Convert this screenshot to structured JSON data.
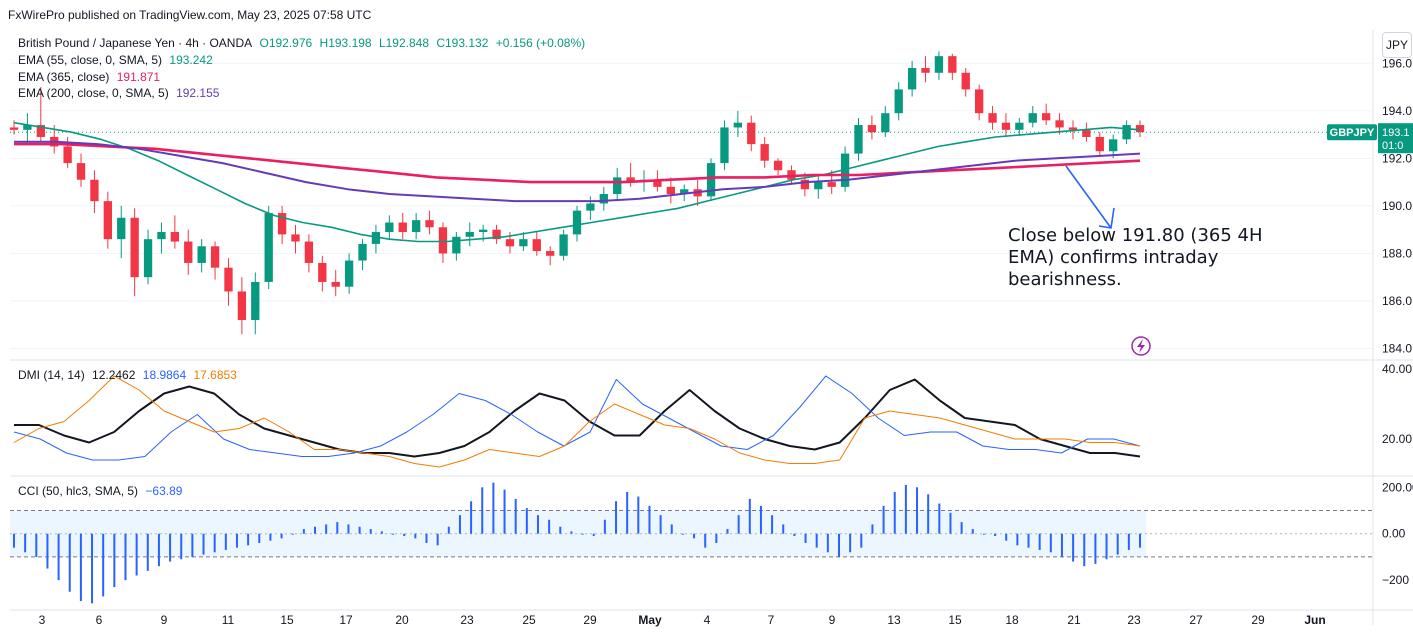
{
  "publisher_line": "FxWirePro published on TradingView.com, May 23, 2025 07:58 UTC",
  "currency_button": "JPY",
  "symbol_header": {
    "name": "British Pound / Japanese Yen · 4h · OANDA",
    "O": "O192.976",
    "H": "H193.198",
    "L": "L192.848",
    "C": "C193.132",
    "change": "+0.156 (+0.08%)"
  },
  "indicators": [
    {
      "label": "EMA (55, close, 0, SMA, 5)",
      "value": "193.242",
      "color": "#089981"
    },
    {
      "label": "EMA (365, close)",
      "value": "191.871",
      "color": "#e91e63"
    },
    {
      "label": "EMA (200, close, 0, SMA, 5)",
      "value": "192.155",
      "color": "#673ab7"
    }
  ],
  "dmi": {
    "label": "DMI (14, 14)",
    "adx": "12.2462",
    "plus": "18.9864",
    "minus": "17.6853"
  },
  "cci": {
    "label": "CCI (50, hlc3, SMA, 5)",
    "value": "−63.89"
  },
  "price_tag": {
    "symbol": "GBPJPY",
    "price": "193.1",
    "countdown": "01:0"
  },
  "annotation": "Close below 191.80 (365 4H EMA) confirms intraday bearishness.",
  "colors": {
    "up": "#089981",
    "down": "#f23645",
    "ema55": "#089981",
    "ema365": "#e91e63",
    "ema200": "#673ab7",
    "adx": "#131722",
    "di_plus": "#2962ff",
    "di_minus": "#f57c00",
    "cci": "#2962ff"
  },
  "chart_data": [
    {
      "type": "candlestick",
      "title": "British Pound / Japanese Yen · 4h · OANDA",
      "x_ticks": [
        "3",
        "6",
        "9",
        "11",
        "15",
        "17",
        "20",
        "23",
        "25",
        "29",
        "May",
        "4",
        "7",
        "9",
        "13",
        "15",
        "18",
        "21",
        "23",
        "27",
        "29",
        "Jun"
      ],
      "y_ticks": [
        "196.0",
        "194.0",
        "192.0",
        "190.0",
        "188.0",
        "186.0",
        "184.0"
      ],
      "ylim": [
        183.6,
        197.4
      ],
      "candles": [
        {
          "o": 193.3,
          "h": 193.6,
          "l": 193.0,
          "c": 193.2
        },
        {
          "o": 193.2,
          "h": 193.9,
          "l": 192.6,
          "c": 193.4
        },
        {
          "o": 193.4,
          "h": 195.0,
          "l": 192.7,
          "c": 192.9
        },
        {
          "o": 192.9,
          "h": 193.4,
          "l": 192.2,
          "c": 192.5
        },
        {
          "o": 192.5,
          "h": 192.9,
          "l": 191.6,
          "c": 191.8
        },
        {
          "o": 191.8,
          "h": 192.2,
          "l": 190.8,
          "c": 191.1
        },
        {
          "o": 191.1,
          "h": 191.5,
          "l": 189.7,
          "c": 190.2
        },
        {
          "o": 190.2,
          "h": 190.6,
          "l": 188.2,
          "c": 188.6
        },
        {
          "o": 188.6,
          "h": 190.0,
          "l": 187.8,
          "c": 189.5
        },
        {
          "o": 189.5,
          "h": 189.9,
          "l": 186.2,
          "c": 187.0
        },
        {
          "o": 187.0,
          "h": 189.0,
          "l": 186.7,
          "c": 188.6
        },
        {
          "o": 188.6,
          "h": 189.3,
          "l": 188.0,
          "c": 188.9
        },
        {
          "o": 188.9,
          "h": 189.6,
          "l": 188.2,
          "c": 188.5
        },
        {
          "o": 188.5,
          "h": 189.0,
          "l": 187.1,
          "c": 187.6
        },
        {
          "o": 187.6,
          "h": 188.6,
          "l": 187.2,
          "c": 188.3
        },
        {
          "o": 188.3,
          "h": 188.5,
          "l": 186.9,
          "c": 187.4
        },
        {
          "o": 187.4,
          "h": 187.8,
          "l": 185.8,
          "c": 186.4
        },
        {
          "o": 186.4,
          "h": 187.0,
          "l": 184.6,
          "c": 185.2
        },
        {
          "o": 185.2,
          "h": 187.2,
          "l": 184.6,
          "c": 186.8
        },
        {
          "o": 186.8,
          "h": 190.0,
          "l": 186.5,
          "c": 189.7
        },
        {
          "o": 189.7,
          "h": 190.0,
          "l": 188.4,
          "c": 188.8
        },
        {
          "o": 188.8,
          "h": 189.2,
          "l": 188.0,
          "c": 188.5
        },
        {
          "o": 188.5,
          "h": 188.8,
          "l": 187.2,
          "c": 187.6
        },
        {
          "o": 187.6,
          "h": 187.9,
          "l": 186.4,
          "c": 186.8
        },
        {
          "o": 186.8,
          "h": 187.3,
          "l": 186.2,
          "c": 186.6
        },
        {
          "o": 186.6,
          "h": 188.0,
          "l": 186.3,
          "c": 187.7
        },
        {
          "o": 187.7,
          "h": 188.6,
          "l": 187.3,
          "c": 188.4
        },
        {
          "o": 188.4,
          "h": 189.2,
          "l": 188.0,
          "c": 188.9
        },
        {
          "o": 188.9,
          "h": 189.6,
          "l": 188.6,
          "c": 189.3
        },
        {
          "o": 189.3,
          "h": 189.7,
          "l": 188.6,
          "c": 188.9
        },
        {
          "o": 188.9,
          "h": 189.7,
          "l": 188.6,
          "c": 189.4
        },
        {
          "o": 189.4,
          "h": 189.8,
          "l": 188.8,
          "c": 189.1
        },
        {
          "o": 189.1,
          "h": 189.3,
          "l": 187.6,
          "c": 188.0
        },
        {
          "o": 188.0,
          "h": 188.9,
          "l": 187.7,
          "c": 188.7
        },
        {
          "o": 188.7,
          "h": 189.3,
          "l": 188.3,
          "c": 188.9
        },
        {
          "o": 188.9,
          "h": 189.2,
          "l": 188.5,
          "c": 189.0
        },
        {
          "o": 189.0,
          "h": 189.2,
          "l": 188.4,
          "c": 188.6
        },
        {
          "o": 188.6,
          "h": 188.9,
          "l": 188.0,
          "c": 188.3
        },
        {
          "o": 188.3,
          "h": 188.9,
          "l": 188.1,
          "c": 188.6
        },
        {
          "o": 188.6,
          "h": 188.9,
          "l": 187.9,
          "c": 188.1
        },
        {
          "o": 188.1,
          "h": 188.3,
          "l": 187.5,
          "c": 187.9
        },
        {
          "o": 187.9,
          "h": 189.0,
          "l": 187.7,
          "c": 188.8
        },
        {
          "o": 188.8,
          "h": 190.0,
          "l": 188.5,
          "c": 189.8
        },
        {
          "o": 189.8,
          "h": 190.4,
          "l": 189.4,
          "c": 190.1
        },
        {
          "o": 190.1,
          "h": 190.8,
          "l": 189.8,
          "c": 190.5
        },
        {
          "o": 190.5,
          "h": 191.6,
          "l": 190.2,
          "c": 191.2
        },
        {
          "o": 191.2,
          "h": 191.8,
          "l": 190.8,
          "c": 191.0
        },
        {
          "o": 191.0,
          "h": 191.5,
          "l": 190.6,
          "c": 191.1
        },
        {
          "o": 191.1,
          "h": 191.5,
          "l": 190.6,
          "c": 190.8
        },
        {
          "o": 190.8,
          "h": 191.2,
          "l": 190.1,
          "c": 190.5
        },
        {
          "o": 190.5,
          "h": 190.9,
          "l": 190.2,
          "c": 190.7
        },
        {
          "o": 190.7,
          "h": 191.1,
          "l": 190.0,
          "c": 190.4
        },
        {
          "o": 190.4,
          "h": 192.0,
          "l": 190.2,
          "c": 191.8
        },
        {
          "o": 191.8,
          "h": 193.6,
          "l": 191.5,
          "c": 193.3
        },
        {
          "o": 193.3,
          "h": 194.0,
          "l": 192.9,
          "c": 193.5
        },
        {
          "o": 193.5,
          "h": 193.8,
          "l": 192.3,
          "c": 192.6
        },
        {
          "o": 192.6,
          "h": 192.9,
          "l": 191.6,
          "c": 191.9
        },
        {
          "o": 191.9,
          "h": 192.0,
          "l": 191.3,
          "c": 191.5
        },
        {
          "o": 191.5,
          "h": 191.7,
          "l": 190.9,
          "c": 191.1
        },
        {
          "o": 191.1,
          "h": 191.4,
          "l": 190.4,
          "c": 190.7
        },
        {
          "o": 190.7,
          "h": 191.3,
          "l": 190.3,
          "c": 191.0
        },
        {
          "o": 191.0,
          "h": 191.5,
          "l": 190.5,
          "c": 190.8
        },
        {
          "o": 190.8,
          "h": 192.5,
          "l": 190.6,
          "c": 192.2
        },
        {
          "o": 192.2,
          "h": 193.7,
          "l": 191.9,
          "c": 193.4
        },
        {
          "o": 193.4,
          "h": 193.8,
          "l": 192.8,
          "c": 193.1
        },
        {
          "o": 193.1,
          "h": 194.2,
          "l": 192.9,
          "c": 193.9
        },
        {
          "o": 193.9,
          "h": 195.2,
          "l": 193.6,
          "c": 194.9
        },
        {
          "o": 194.9,
          "h": 196.1,
          "l": 194.6,
          "c": 195.8
        },
        {
          "o": 195.8,
          "h": 196.3,
          "l": 195.2,
          "c": 195.6
        },
        {
          "o": 195.6,
          "h": 196.5,
          "l": 195.3,
          "c": 196.3
        },
        {
          "o": 196.3,
          "h": 196.4,
          "l": 195.3,
          "c": 195.6
        },
        {
          "o": 195.6,
          "h": 195.8,
          "l": 194.6,
          "c": 194.9
        },
        {
          "o": 194.9,
          "h": 195.1,
          "l": 193.6,
          "c": 193.9
        },
        {
          "o": 193.9,
          "h": 194.2,
          "l": 193.2,
          "c": 193.5
        },
        {
          "o": 193.5,
          "h": 193.9,
          "l": 192.9,
          "c": 193.2
        },
        {
          "o": 193.2,
          "h": 193.7,
          "l": 193.0,
          "c": 193.5
        },
        {
          "o": 193.5,
          "h": 194.2,
          "l": 193.3,
          "c": 193.9
        },
        {
          "o": 193.9,
          "h": 194.3,
          "l": 193.4,
          "c": 193.6
        },
        {
          "o": 193.6,
          "h": 193.9,
          "l": 193.0,
          "c": 193.3
        },
        {
          "o": 193.3,
          "h": 193.6,
          "l": 192.8,
          "c": 193.2
        },
        {
          "o": 193.2,
          "h": 193.5,
          "l": 192.7,
          "c": 192.9
        },
        {
          "o": 192.9,
          "h": 193.1,
          "l": 192.1,
          "c": 192.3
        },
        {
          "o": 192.3,
          "h": 193.0,
          "l": 192.0,
          "c": 192.8
        },
        {
          "o": 192.8,
          "h": 193.6,
          "l": 192.6,
          "c": 193.4
        },
        {
          "o": 193.4,
          "h": 193.6,
          "l": 192.9,
          "c": 193.1
        }
      ],
      "series": [
        {
          "name": "EMA (55, close, 0, SMA, 5)",
          "values": [
            193.5,
            193.3,
            193.1,
            192.8,
            192.4,
            191.9,
            191.3,
            190.7,
            190.1,
            189.6,
            189.3,
            189.1,
            188.8,
            188.6,
            188.5,
            188.5,
            188.6,
            188.7,
            188.9,
            189.1,
            189.3,
            189.5,
            189.7,
            189.9,
            190.2,
            190.5,
            190.8,
            191.1,
            191.3,
            191.6,
            191.9,
            192.2,
            192.5,
            192.7,
            192.9,
            193.0,
            193.1,
            193.2,
            193.3,
            193.2
          ]
        },
        {
          "name": "EMA (365, close)",
          "values": [
            192.6,
            192.6,
            192.5,
            192.4,
            192.2,
            192.0,
            191.8,
            191.6,
            191.4,
            191.2,
            191.1,
            191.0,
            191.0,
            191.0,
            191.1,
            191.2,
            191.2,
            191.3,
            191.3,
            191.4,
            191.5,
            191.6,
            191.7,
            191.8,
            191.9
          ]
        },
        {
          "name": "EMA (200, close, 0, SMA, 5)",
          "values": [
            192.7,
            192.7,
            192.6,
            192.4,
            192.1,
            191.8,
            191.4,
            191.0,
            190.7,
            190.5,
            190.4,
            190.3,
            190.2,
            190.2,
            190.2,
            190.3,
            190.5,
            190.7,
            190.8,
            191.0,
            191.1,
            191.3,
            191.5,
            191.7,
            191.9,
            192.0,
            192.1,
            192.2
          ]
        }
      ]
    },
    {
      "type": "line",
      "title": "DMI (14, 14)",
      "y_ticks": [
        "40.00",
        "20.00"
      ],
      "ylim": [
        10,
        42
      ],
      "series": [
        {
          "name": "ADX",
          "values": [
            24,
            24,
            21,
            19,
            22,
            28,
            33,
            35,
            33,
            27,
            23,
            21,
            19,
            17,
            16,
            16,
            15,
            16,
            18,
            22,
            28,
            33,
            31,
            25,
            21,
            21,
            28,
            34,
            28,
            23,
            20,
            18,
            17,
            19,
            26,
            34,
            37,
            31,
            26,
            25,
            24,
            20,
            18,
            16,
            16,
            15
          ]
        },
        {
          "name": "+DI",
          "values": [
            22,
            20,
            16,
            14,
            14,
            15,
            22,
            27,
            20,
            17,
            16,
            15,
            15,
            16,
            18,
            22,
            27,
            33,
            31,
            27,
            22,
            18,
            22,
            37,
            30,
            26,
            22,
            18,
            17,
            21,
            29,
            38,
            33,
            26,
            21,
            22,
            22,
            18,
            17,
            17,
            16,
            20,
            20,
            18
          ]
        },
        {
          "name": "-DI",
          "values": [
            19,
            23,
            25,
            31,
            38,
            34,
            28,
            25,
            22,
            23,
            26,
            22,
            17,
            17,
            16,
            15,
            13,
            12,
            14,
            17,
            16,
            15,
            18,
            25,
            30,
            27,
            24,
            23,
            20,
            16,
            14,
            13,
            13,
            14,
            26,
            28,
            27,
            26,
            24,
            22,
            20,
            20,
            20,
            19,
            19,
            18
          ]
        }
      ]
    },
    {
      "type": "bar",
      "title": "CCI (50, hlc3, SMA, 5)",
      "y_ticks": [
        "200.00",
        "0.00",
        "−200"
      ],
      "ylim": [
        -320,
        240
      ],
      "values": [
        -60,
        -80,
        -100,
        -150,
        -200,
        -250,
        -290,
        -300,
        -270,
        -230,
        -200,
        -180,
        -160,
        -140,
        -120,
        -110,
        -100,
        -90,
        -80,
        -70,
        -60,
        -50,
        -40,
        -30,
        -20,
        0,
        20,
        30,
        40,
        50,
        40,
        30,
        20,
        10,
        0,
        -10,
        -20,
        -40,
        -50,
        30,
        80,
        140,
        200,
        220,
        190,
        150,
        110,
        80,
        60,
        30,
        10,
        0,
        -10,
        60,
        140,
        180,
        160,
        120,
        80,
        40,
        0,
        -20,
        -60,
        -40,
        20,
        80,
        150,
        120,
        80,
        40,
        -10,
        -40,
        -60,
        -80,
        -100,
        -80,
        -60,
        40,
        120,
        180,
        210,
        200,
        170,
        130,
        90,
        50,
        20,
        0,
        -10,
        -30,
        -50,
        -60,
        -70,
        -80,
        -100,
        -120,
        -140,
        -130,
        -110,
        -90,
        -70,
        -60
      ]
    }
  ]
}
